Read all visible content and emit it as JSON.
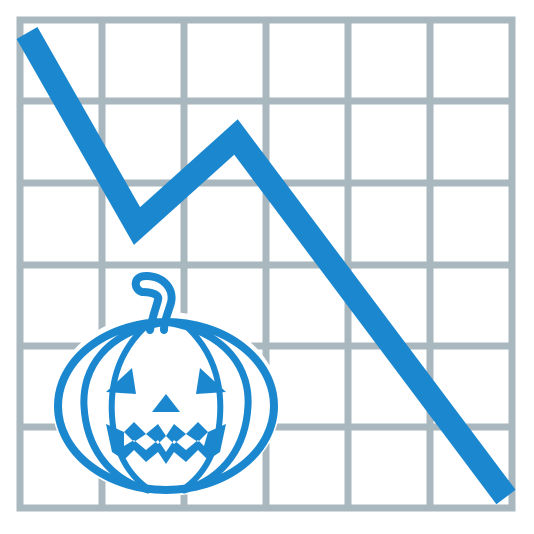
{
  "illustration": {
    "icon": "halloween-stock-decline-icon",
    "chart_trend": "down",
    "grid": {
      "columns": 6,
      "rows": 6,
      "visible": true
    },
    "decoration": "jack-o-lantern-icon",
    "colors": {
      "background": "#ffffff",
      "grid": "#a9b7bf",
      "line": "#1a87cf",
      "pumpkin": "#1a87cf"
    }
  }
}
